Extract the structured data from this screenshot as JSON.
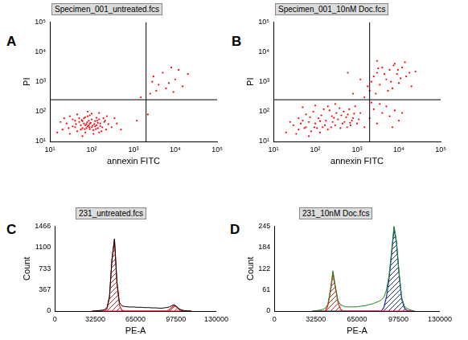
{
  "chart_data": [
    {
      "panel_label": "A",
      "type": "scatter",
      "title": "Specimen_001_untreated.fcs",
      "x_label": "annexin FITC",
      "y_label": "PI",
      "log": true,
      "grid": false,
      "color": "#ff0000",
      "marker": "dot",
      "xlim": [
        10,
        100000
      ],
      "ylim": [
        10,
        100000
      ],
      "xticks": [
        {
          "value": 10,
          "label": "10¹"
        },
        {
          "value": 100,
          "label": "10²"
        },
        {
          "value": 1000,
          "label": "10³"
        },
        {
          "value": 10000,
          "label": "10⁴"
        },
        {
          "value": 100000,
          "label": "10⁵"
        }
      ],
      "yticks": [
        {
          "value": 10,
          "label": "10¹"
        },
        {
          "value": 100,
          "label": "10²"
        },
        {
          "value": 1000,
          "label": "10³"
        },
        {
          "value": 10000,
          "label": "10⁴"
        },
        {
          "value": 100000,
          "label": "10⁵"
        }
      ],
      "gates": {
        "x": 2000,
        "y": 250
      },
      "points": [
        [
          20,
          25
        ],
        [
          25,
          40
        ],
        [
          30,
          18
        ],
        [
          35,
          55
        ],
        [
          40,
          30
        ],
        [
          45,
          22
        ],
        [
          50,
          45
        ],
        [
          55,
          35
        ],
        [
          60,
          28
        ],
        [
          65,
          60
        ],
        [
          70,
          20
        ],
        [
          75,
          38
        ],
        [
          80,
          32
        ],
        [
          85,
          50
        ],
        [
          90,
          26
        ],
        [
          95,
          42
        ],
        [
          100,
          30
        ],
        [
          110,
          24
        ],
        [
          120,
          48
        ],
        [
          130,
          35
        ],
        [
          140,
          28
        ],
        [
          150,
          55
        ],
        [
          160,
          40
        ],
        [
          180,
          30
        ],
        [
          200,
          45
        ],
        [
          220,
          25
        ],
        [
          250,
          38
        ],
        [
          30,
          70
        ],
        [
          45,
          80
        ],
        [
          60,
          15
        ],
        [
          70,
          65
        ],
        [
          90,
          75
        ],
        [
          110,
          18
        ],
        [
          130,
          62
        ],
        [
          150,
          20
        ],
        [
          40,
          50
        ],
        [
          55,
          25
        ],
        [
          65,
          40
        ],
        [
          75,
          28
        ],
        [
          85,
          35
        ],
        [
          100,
          55
        ],
        [
          120,
          32
        ],
        [
          140,
          42
        ],
        [
          170,
          22
        ],
        [
          190,
          60
        ],
        [
          35,
          32
        ],
        [
          50,
          60
        ],
        [
          80,
          70
        ],
        [
          100,
          85
        ],
        [
          60,
          48
        ],
        [
          70,
          35
        ],
        [
          90,
          40
        ],
        [
          115,
          38
        ],
        [
          135,
          50
        ],
        [
          28,
          28
        ],
        [
          42,
          38
        ],
        [
          58,
          52
        ],
        [
          68,
          26
        ],
        [
          78,
          44
        ],
        [
          88,
          30
        ],
        [
          105,
          34
        ],
        [
          125,
          26
        ],
        [
          160,
          33
        ],
        [
          210,
          50
        ],
        [
          300,
          30
        ],
        [
          400,
          40
        ],
        [
          350,
          60
        ],
        [
          500,
          25
        ],
        [
          15,
          20
        ],
        [
          18,
          45
        ],
        [
          22,
          60
        ],
        [
          150,
          90
        ],
        [
          80,
          100
        ],
        [
          230,
          70
        ],
        [
          1200,
          50
        ],
        [
          2200,
          80
        ],
        [
          2500,
          400
        ],
        [
          3000,
          1500
        ],
        [
          4000,
          800
        ],
        [
          5000,
          2000
        ],
        [
          6000,
          600
        ],
        [
          8000,
          3000
        ],
        [
          10000,
          1200
        ],
        [
          3500,
          500
        ],
        [
          7000,
          900
        ],
        [
          12000,
          2500
        ],
        [
          2800,
          1000
        ],
        [
          9000,
          450
        ],
        [
          15000,
          700
        ],
        [
          1500,
          300
        ],
        [
          20000,
          1800
        ]
      ]
    },
    {
      "panel_label": "B",
      "type": "scatter",
      "title": "Specimen_001_10nM Doc.fcs",
      "x_label": "annexin FITC",
      "y_label": "PI",
      "log": true,
      "grid": false,
      "color": "#ff0000",
      "marker": "dot",
      "xlim": [
        10,
        100000
      ],
      "ylim": [
        10,
        100000
      ],
      "xticks": [
        {
          "value": 10,
          "label": "10¹"
        },
        {
          "value": 100,
          "label": "10²"
        },
        {
          "value": 1000,
          "label": "10³"
        },
        {
          "value": 10000,
          "label": "10⁴"
        },
        {
          "value": 100000,
          "label": "10⁵"
        }
      ],
      "yticks": [
        {
          "value": 10,
          "label": "10¹"
        },
        {
          "value": 100,
          "label": "10²"
        },
        {
          "value": 1000,
          "label": "10³"
        },
        {
          "value": 10000,
          "label": "10⁴"
        },
        {
          "value": 100000,
          "label": "10⁵"
        }
      ],
      "gates": {
        "x": 2000,
        "y": 250
      },
      "points": [
        [
          20,
          20
        ],
        [
          30,
          35
        ],
        [
          40,
          25
        ],
        [
          50,
          50
        ],
        [
          60,
          30
        ],
        [
          70,
          45
        ],
        [
          80,
          22
        ],
        [
          100,
          40
        ],
        [
          120,
          60
        ],
        [
          150,
          30
        ],
        [
          180,
          50
        ],
        [
          200,
          25
        ],
        [
          250,
          70
        ],
        [
          300,
          35
        ],
        [
          350,
          55
        ],
        [
          400,
          28
        ],
        [
          500,
          45
        ],
        [
          600,
          80
        ],
        [
          700,
          35
        ],
        [
          800,
          60
        ],
        [
          1000,
          40
        ],
        [
          1200,
          90
        ],
        [
          1500,
          30
        ],
        [
          40,
          60
        ],
        [
          60,
          80
        ],
        [
          90,
          100
        ],
        [
          110,
          28
        ],
        [
          140,
          75
        ],
        [
          170,
          35
        ],
        [
          220,
          110
        ],
        [
          260,
          45
        ],
        [
          320,
          90
        ],
        [
          380,
          130
        ],
        [
          450,
          40
        ],
        [
          550,
          65
        ],
        [
          650,
          120
        ],
        [
          750,
          50
        ],
        [
          900,
          150
        ],
        [
          25,
          45
        ],
        [
          35,
          18
        ],
        [
          55,
          28
        ],
        [
          75,
          65
        ],
        [
          95,
          30
        ],
        [
          130,
          48
        ],
        [
          160,
          120
        ],
        [
          240,
          30
        ],
        [
          280,
          62
        ],
        [
          420,
          75
        ],
        [
          480,
          100
        ],
        [
          580,
          30
        ],
        [
          680,
          42
        ],
        [
          850,
          85
        ],
        [
          1100,
          55
        ],
        [
          50,
          140
        ],
        [
          100,
          160
        ],
        [
          200,
          150
        ],
        [
          300,
          180
        ],
        [
          130,
          20
        ],
        [
          70,
          15
        ],
        [
          45,
          40
        ],
        [
          1500,
          300
        ],
        [
          2000,
          500
        ],
        [
          2500,
          1500
        ],
        [
          3000,
          2000
        ],
        [
          3500,
          800
        ],
        [
          4000,
          3000
        ],
        [
          5000,
          1200
        ],
        [
          6000,
          2500
        ],
        [
          7000,
          600
        ],
        [
          8000,
          4000
        ],
        [
          9000,
          1800
        ],
        [
          10000,
          900
        ],
        [
          12000,
          3000
        ],
        [
          15000,
          1500
        ],
        [
          20000,
          700
        ],
        [
          25000,
          2200
        ],
        [
          2200,
          1000
        ],
        [
          2800,
          400
        ],
        [
          3200,
          2800
        ],
        [
          4500,
          1800
        ],
        [
          5500,
          500
        ],
        [
          6500,
          1000
        ],
        [
          7500,
          3500
        ],
        [
          9500,
          2500
        ],
        [
          11000,
          1300
        ],
        [
          14000,
          4500
        ],
        [
          18000,
          2000
        ],
        [
          3000,
          5000
        ],
        [
          1800,
          700
        ],
        [
          800,
          400
        ],
        [
          1200,
          1200
        ],
        [
          600,
          2000
        ],
        [
          2000,
          60
        ],
        [
          2500,
          120
        ],
        [
          3000,
          40
        ],
        [
          4000,
          90
        ],
        [
          5000,
          150
        ],
        [
          6000,
          70
        ],
        [
          8000,
          110
        ],
        [
          10000,
          50
        ],
        [
          3500,
          180
        ],
        [
          7000,
          30
        ],
        [
          2200,
          200
        ],
        [
          12000,
          90
        ]
      ]
    },
    {
      "panel_label": "C",
      "type": "line",
      "title": "231_untreated.fcs",
      "x_label": "PE-A",
      "y_label": "Count",
      "grid": false,
      "xlim": [
        0,
        130000
      ],
      "xticks": [
        0,
        32500,
        65000,
        97500,
        130000
      ],
      "ylim": [
        0,
        1466
      ],
      "yticks": [
        0,
        367,
        733,
        1100,
        1466
      ],
      "x": [
        30000,
        32000,
        34000,
        36000,
        38000,
        40000,
        42000,
        44000,
        46000,
        48000,
        50000,
        52000,
        54000,
        56000,
        58000,
        60000,
        62000,
        64000,
        66000,
        68000,
        70000,
        72000,
        74000,
        76000,
        78000,
        80000,
        82000,
        84000,
        86000,
        88000,
        90000,
        92000,
        94000,
        96000,
        98000,
        100000,
        102000,
        104000,
        106000,
        108000,
        110000
      ],
      "series": [
        {
          "type": "line",
          "color": "#000000",
          "values": [
            0,
            0,
            5,
            10,
            15,
            25,
            60,
            250,
            900,
            1250,
            500,
            150,
            90,
            80,
            75,
            70,
            70,
            70,
            65,
            65,
            65,
            60,
            60,
            60,
            55,
            55,
            55,
            50,
            50,
            55,
            60,
            70,
            90,
            110,
            80,
            40,
            20,
            10,
            5,
            0,
            0
          ]
        },
        {
          "type": "area",
          "color": "#e02020",
          "values": [
            0,
            0,
            0,
            0,
            0,
            0,
            40,
            240,
            880,
            1230,
            480,
            100,
            15,
            0,
            0,
            0,
            0,
            0,
            0,
            0,
            0,
            0,
            0,
            0,
            0,
            0,
            0,
            0,
            0,
            0,
            0,
            0,
            0,
            0,
            0,
            0,
            0,
            0,
            0,
            0,
            0
          ]
        },
        {
          "type": "area",
          "color": "#e02020",
          "values": [
            0,
            0,
            0,
            0,
            0,
            0,
            0,
            0,
            0,
            0,
            0,
            0,
            0,
            0,
            0,
            0,
            0,
            0,
            0,
            0,
            0,
            0,
            0,
            0,
            0,
            0,
            0,
            0,
            0,
            0,
            0,
            20,
            60,
            95,
            70,
            30,
            8,
            0,
            0,
            0,
            0
          ]
        }
      ]
    },
    {
      "panel_label": "D",
      "type": "line",
      "title": "231_10nM Doc.fcs",
      "x_label": "PE-A",
      "y_label": "Count",
      "grid": false,
      "xlim": [
        0,
        130000
      ],
      "xticks": [
        0,
        32500,
        65000,
        97500,
        130000
      ],
      "ylim": [
        0,
        245
      ],
      "yticks": [
        0,
        61,
        122,
        184,
        245
      ],
      "x": [
        30000,
        32000,
        34000,
        36000,
        38000,
        40000,
        42000,
        44000,
        46000,
        48000,
        50000,
        52000,
        54000,
        56000,
        58000,
        60000,
        62000,
        64000,
        66000,
        68000,
        70000,
        72000,
        74000,
        76000,
        78000,
        80000,
        82000,
        84000,
        86000,
        88000,
        90000,
        92000,
        94000,
        96000,
        98000,
        100000,
        102000,
        104000,
        106000,
        108000,
        110000
      ],
      "series": [
        {
          "type": "line",
          "color": "#1a8a1a",
          "values": [
            0,
            0,
            2,
            3,
            5,
            8,
            20,
            60,
            115,
            70,
            30,
            18,
            15,
            12,
            12,
            12,
            12,
            12,
            13,
            14,
            15,
            16,
            18,
            20,
            22,
            25,
            28,
            32,
            40,
            60,
            100,
            170,
            245,
            200,
            110,
            40,
            15,
            8,
            4,
            2,
            0
          ]
        },
        {
          "type": "area",
          "color": "#e02020",
          "values": [
            0,
            0,
            0,
            0,
            0,
            0,
            15,
            55,
            110,
            65,
            25,
            5,
            0,
            0,
            0,
            0,
            0,
            0,
            0,
            0,
            0,
            0,
            0,
            0,
            0,
            0,
            0,
            0,
            0,
            0,
            0,
            0,
            0,
            0,
            0,
            0,
            0,
            0,
            0,
            0,
            0
          ]
        },
        {
          "type": "area",
          "color": "#1a2fa0",
          "values": [
            0,
            0,
            0,
            0,
            0,
            0,
            0,
            0,
            0,
            0,
            0,
            0,
            0,
            0,
            0,
            0,
            0,
            0,
            0,
            0,
            0,
            0,
            0,
            0,
            0,
            0,
            0,
            0,
            10,
            40,
            90,
            160,
            238,
            195,
            105,
            35,
            10,
            2,
            0,
            0,
            0
          ]
        }
      ]
    }
  ]
}
